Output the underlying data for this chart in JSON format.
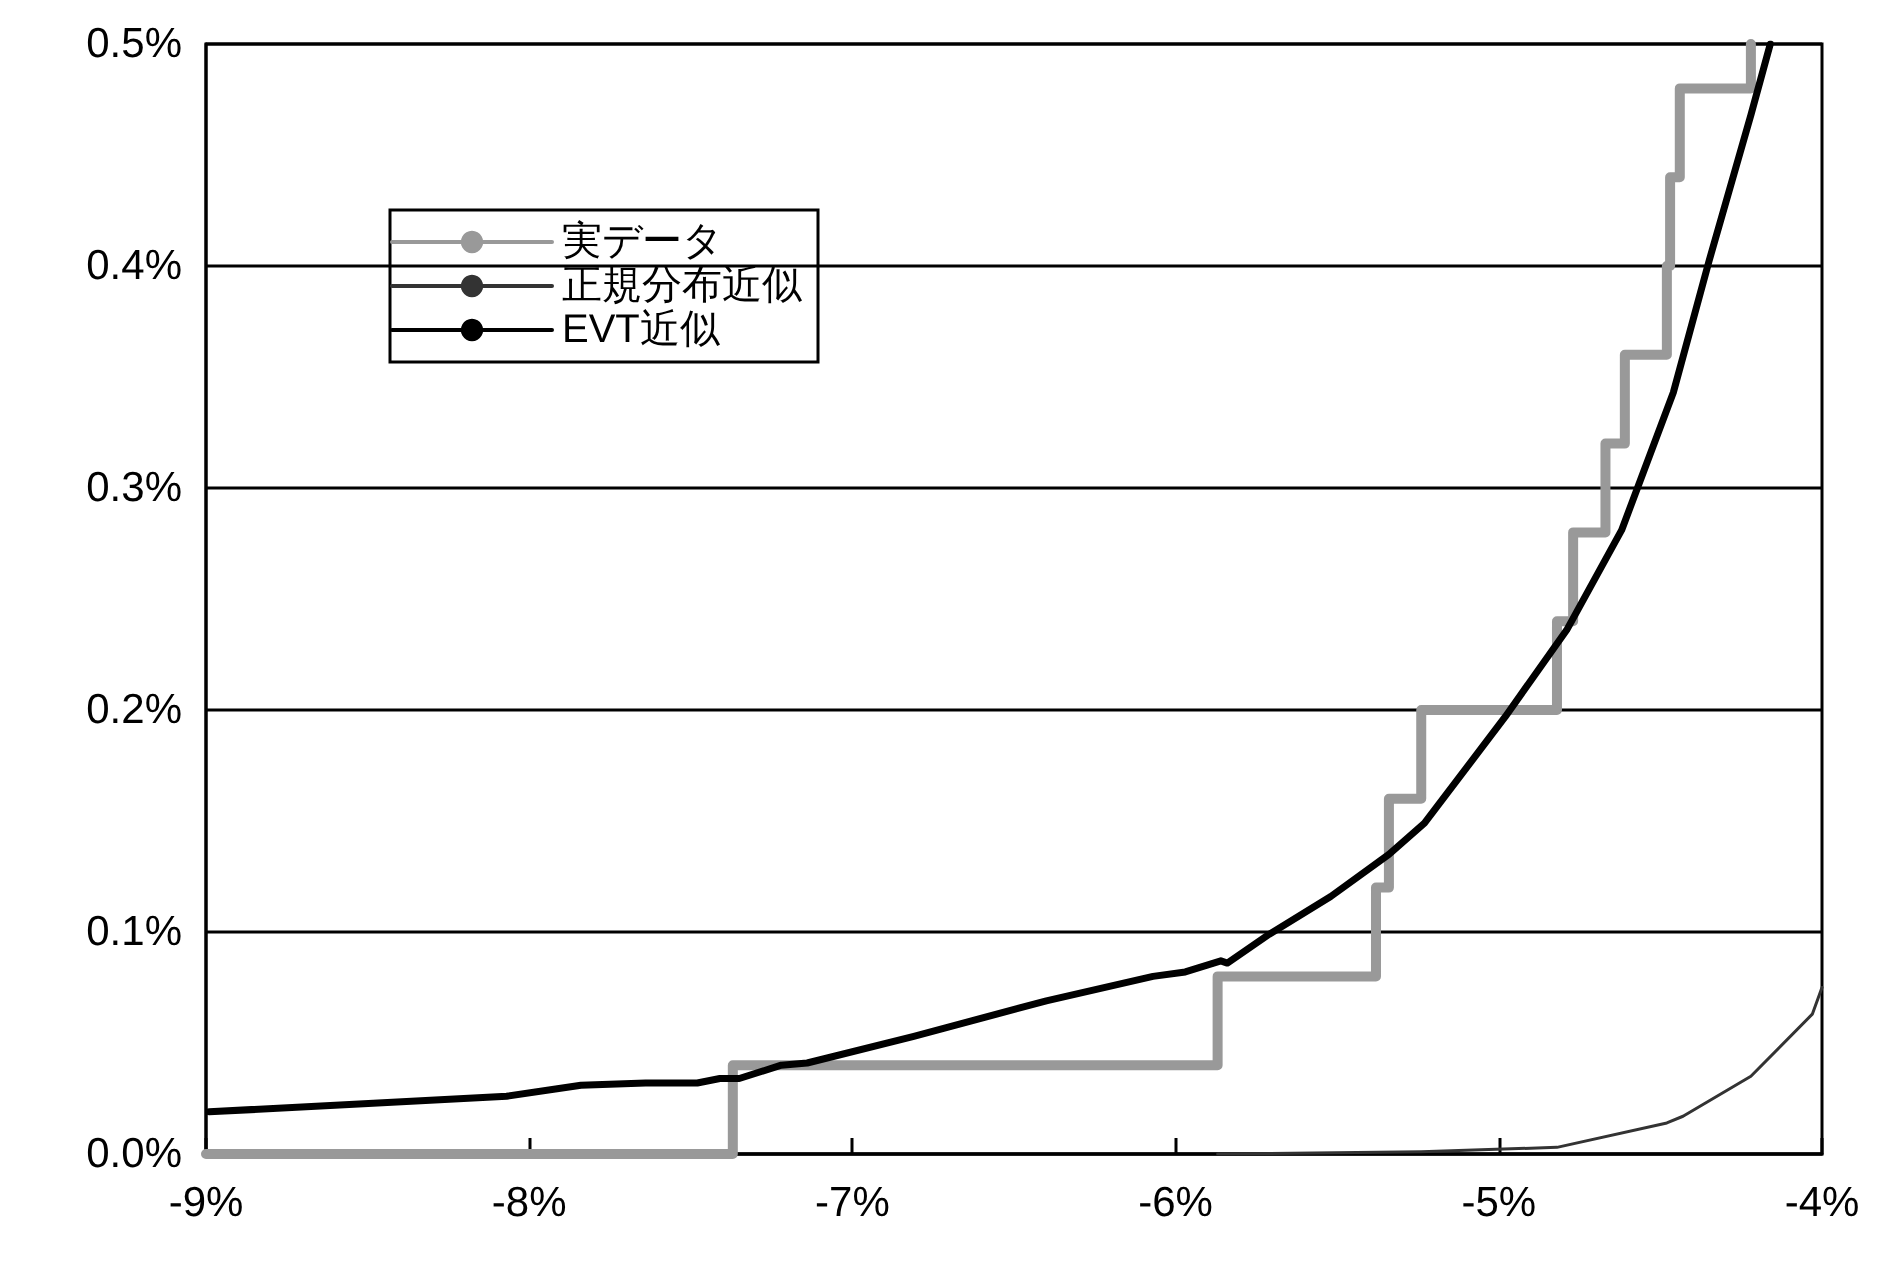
{
  "chart_data": {
    "type": "line",
    "series": [
      {
        "name": "実データ",
        "type": "step",
        "color": "#999999",
        "x": [
          -9,
          -7.37,
          -5.87,
          -5.38,
          -5.34,
          -5.24,
          -4.82,
          -4.77,
          -4.67,
          -4.61,
          -4.48,
          -4.47,
          -4.44,
          -4.22
        ],
        "values": [
          0,
          0.04,
          0.08,
          0.12,
          0.16,
          0.2,
          0.24,
          0.28,
          0.32,
          0.36,
          0.4,
          0.44,
          0.48,
          0.5
        ]
      },
      {
        "name": "正規分布近似",
        "color": "#333333",
        "x": [
          -5.87,
          -5.24,
          -4.82,
          -4.48,
          -4.43,
          -4.22,
          -4.03,
          -4.0
        ],
        "values": [
          0,
          0.001,
          0.003,
          0.014,
          0.017,
          0.035,
          0.063,
          0.075
        ]
      },
      {
        "name": "EVT近似",
        "color": "#000000",
        "x": [
          -8.99,
          -8.07,
          -7.84,
          -7.64,
          -7.48,
          -7.41,
          -7.35,
          -7.22,
          -7.14,
          -6.81,
          -6.4,
          -6.07,
          -5.97,
          -5.86,
          -5.84,
          -5.71,
          -5.52,
          -5.34,
          -5.23,
          -4.98,
          -4.79,
          -4.62,
          -4.46,
          -4.35,
          -4.22,
          -4.16
        ],
        "values": [
          0.019,
          0.026,
          0.031,
          0.032,
          0.032,
          0.034,
          0.034,
          0.04,
          0.041,
          0.053,
          0.069,
          0.08,
          0.082,
          0.087,
          0.086,
          0.099,
          0.116,
          0.135,
          0.149,
          0.197,
          0.236,
          0.281,
          0.343,
          0.402,
          0.468,
          0.5
        ]
      }
    ],
    "xlim": [
      -9,
      -4
    ],
    "xticks": [
      {
        "value": -9,
        "label": "-9%"
      },
      {
        "value": -8,
        "label": "-8%"
      },
      {
        "value": -7,
        "label": "-7%"
      },
      {
        "value": -6,
        "label": "-6%"
      },
      {
        "value": -5,
        "label": "-5%"
      },
      {
        "value": -4,
        "label": "-4%"
      }
    ],
    "ylim": [
      0,
      0.5
    ],
    "yticks": [
      {
        "value": 0,
        "label": "0.0%"
      },
      {
        "value": 0.1,
        "label": "0.1%"
      },
      {
        "value": 0.2,
        "label": "0.2%"
      },
      {
        "value": 0.3,
        "label": "0.3%"
      },
      {
        "value": 0.4,
        "label": "0.4%"
      },
      {
        "value": 0.5,
        "label": "0.5%"
      }
    ],
    "grid": "y",
    "legend": "top left",
    "marker": "none"
  }
}
